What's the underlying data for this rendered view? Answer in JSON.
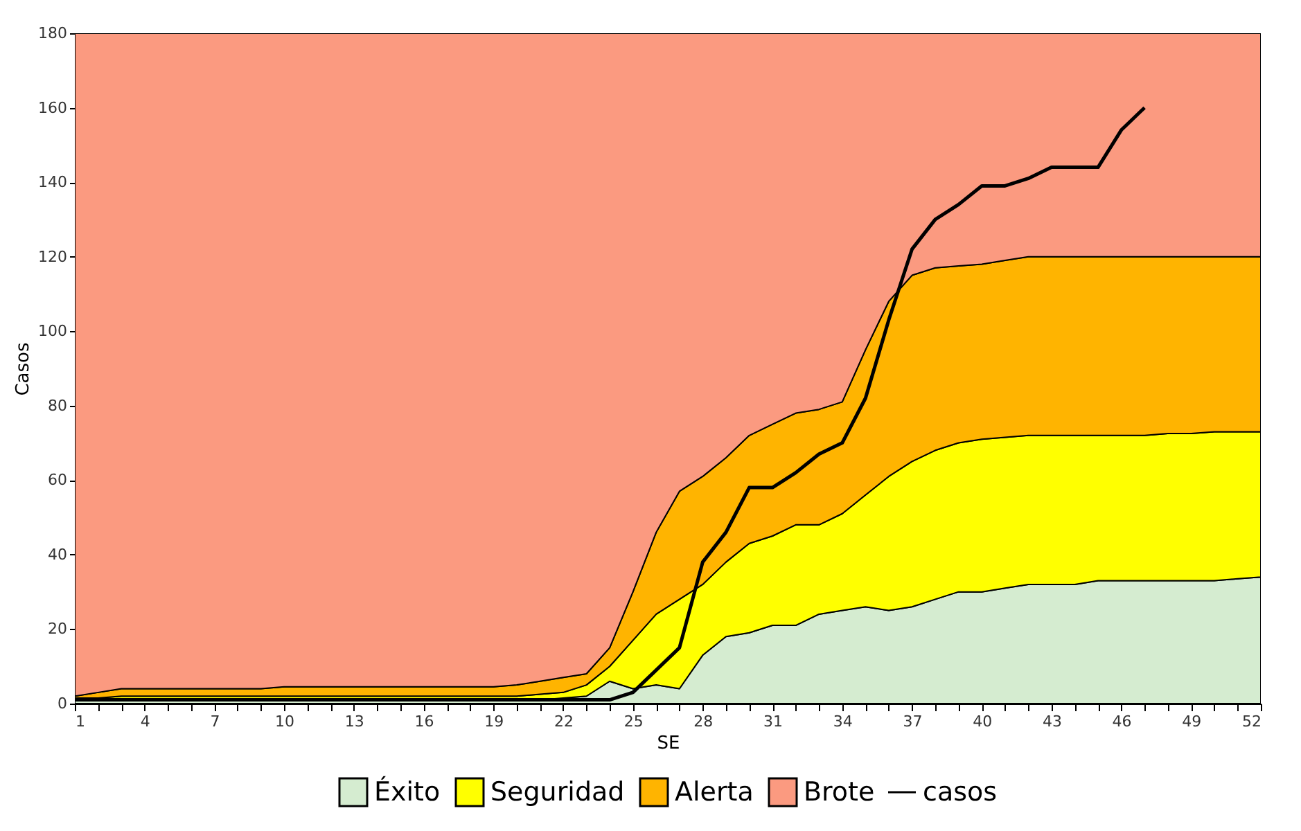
{
  "chart_data": {
    "type": "area",
    "stacked": true,
    "xlabel": "SE",
    "ylabel": "Casos",
    "legend": "bottom",
    "grid": false,
    "x": [
      1,
      2,
      3,
      4,
      5,
      6,
      7,
      8,
      9,
      10,
      11,
      12,
      13,
      14,
      15,
      16,
      17,
      18,
      19,
      20,
      21,
      22,
      23,
      24,
      25,
      26,
      27,
      28,
      29,
      30,
      31,
      32,
      33,
      34,
      35,
      36,
      37,
      38,
      39,
      40,
      41,
      42,
      43,
      44,
      45,
      46,
      47,
      48,
      49,
      50,
      51,
      52
    ],
    "xlim": [
      1,
      52
    ],
    "ylim": [
      0,
      180
    ],
    "xticks": [
      1,
      {
        "value": 2,
        "label": null
      },
      {
        "value": 3,
        "label": null
      },
      4,
      {
        "value": 5,
        "label": null
      },
      {
        "value": 6,
        "label": null
      },
      7,
      {
        "value": 8,
        "label": null
      },
      {
        "value": 9,
        "label": null
      },
      10,
      {
        "value": 11,
        "label": null
      },
      {
        "value": 12,
        "label": null
      },
      13,
      {
        "value": 14,
        "label": null
      },
      {
        "value": 15,
        "label": null
      },
      16,
      {
        "value": 17,
        "label": null
      },
      {
        "value": 18,
        "label": null
      },
      19,
      {
        "value": 20,
        "label": null
      },
      {
        "value": 21,
        "label": null
      },
      22,
      {
        "value": 23,
        "label": null
      },
      {
        "value": 24,
        "label": null
      },
      25,
      {
        "value": 26,
        "label": null
      },
      {
        "value": 27,
        "label": null
      },
      28,
      {
        "value": 29,
        "label": null
      },
      {
        "value": 30,
        "label": null
      },
      31,
      {
        "value": 32,
        "label": null
      },
      {
        "value": 33,
        "label": null
      },
      34,
      {
        "value": 35,
        "label": null
      },
      {
        "value": 36,
        "label": null
      },
      37,
      {
        "value": 38,
        "label": null
      },
      {
        "value": 39,
        "label": null
      },
      40,
      {
        "value": 41,
        "label": null
      },
      {
        "value": 42,
        "label": null
      },
      43,
      {
        "value": 44,
        "label": null
      },
      {
        "value": 45,
        "label": null
      },
      46,
      {
        "value": 47,
        "label": null
      },
      {
        "value": 48,
        "label": null
      },
      49,
      {
        "value": 50,
        "label": null
      },
      {
        "value": 51,
        "label": null
      },
      52
    ],
    "yticks": [
      0,
      20,
      40,
      60,
      80,
      100,
      120,
      140,
      160,
      180
    ],
    "series": [
      {
        "name": "Éxito",
        "color": "#d5ecd0",
        "values": [
          1,
          1,
          1,
          1,
          1,
          1,
          1,
          1,
          1,
          1,
          1,
          1,
          1,
          1,
          1,
          1,
          1,
          1,
          1,
          1,
          1,
          1.5,
          2,
          6,
          4,
          5,
          4,
          13,
          18,
          19,
          21,
          21,
          24,
          25,
          26,
          25,
          26,
          28,
          30,
          30,
          31,
          32,
          32,
          32,
          33,
          33,
          33,
          33,
          33,
          33,
          33.5,
          34
        ]
      },
      {
        "name": "Seguridad",
        "color": "#ffff00",
        "values": [
          0.5,
          0.5,
          1,
          1,
          1,
          1,
          1,
          1,
          1,
          1,
          1,
          1,
          1,
          1,
          1,
          1,
          1,
          1,
          1,
          1,
          1.5,
          1.5,
          3,
          4,
          13,
          19,
          24,
          19,
          20,
          24,
          24,
          27,
          24,
          26,
          30,
          36,
          39,
          40,
          40,
          41,
          40.5,
          40,
          40,
          40,
          39,
          39,
          39,
          39.5,
          39.5,
          40,
          39.5,
          39
        ]
      },
      {
        "name": "Alerta",
        "color": "#ffb400",
        "values": [
          0.5,
          1.5,
          2,
          2,
          2,
          2,
          2,
          2,
          2,
          2.5,
          2.5,
          2.5,
          2.5,
          2.5,
          2.5,
          2.5,
          2.5,
          2.5,
          2.5,
          3,
          3.5,
          4,
          3,
          5,
          13,
          22,
          29,
          29,
          28,
          29,
          30,
          30,
          31,
          30,
          39,
          47,
          50,
          49,
          47.5,
          47,
          47.5,
          48,
          48,
          48,
          48,
          48,
          48,
          47.5,
          47.5,
          47,
          47,
          47
        ]
      },
      {
        "name": "Brote",
        "color": "#fb9a80",
        "values": [
          178,
          177,
          176,
          176,
          176,
          176,
          176,
          176,
          176,
          175.5,
          175.5,
          175.5,
          175.5,
          175.5,
          175.5,
          175.5,
          175.5,
          175.5,
          175.5,
          175,
          174,
          173,
          172,
          165,
          150,
          134,
          123,
          119,
          114,
          108,
          105,
          102,
          101,
          99,
          85,
          72,
          65,
          63,
          62.5,
          62,
          61,
          60,
          60,
          60,
          60,
          60,
          60,
          60,
          60,
          60,
          60,
          60
        ]
      },
      {
        "name": "casos",
        "type": "line",
        "color": "#000000",
        "x": [
          1,
          2,
          3,
          4,
          5,
          6,
          7,
          8,
          9,
          10,
          11,
          12,
          13,
          14,
          15,
          16,
          17,
          18,
          19,
          20,
          21,
          22,
          23,
          24,
          25,
          26,
          27,
          28,
          29,
          30,
          31,
          32,
          33,
          34,
          35,
          36,
          37,
          38,
          39,
          40,
          41,
          42,
          43,
          44,
          45,
          46,
          47
        ],
        "values": [
          1,
          1,
          1,
          1,
          1,
          1,
          1,
          1,
          1,
          1,
          1,
          1,
          1,
          1,
          1,
          1,
          1,
          1,
          1,
          1,
          1,
          1,
          1,
          1,
          3,
          9,
          15,
          38,
          46,
          58,
          58,
          62,
          67,
          70,
          82,
          103,
          122,
          130,
          134,
          139,
          139,
          141,
          144,
          144,
          144,
          154,
          160
        ]
      }
    ]
  }
}
